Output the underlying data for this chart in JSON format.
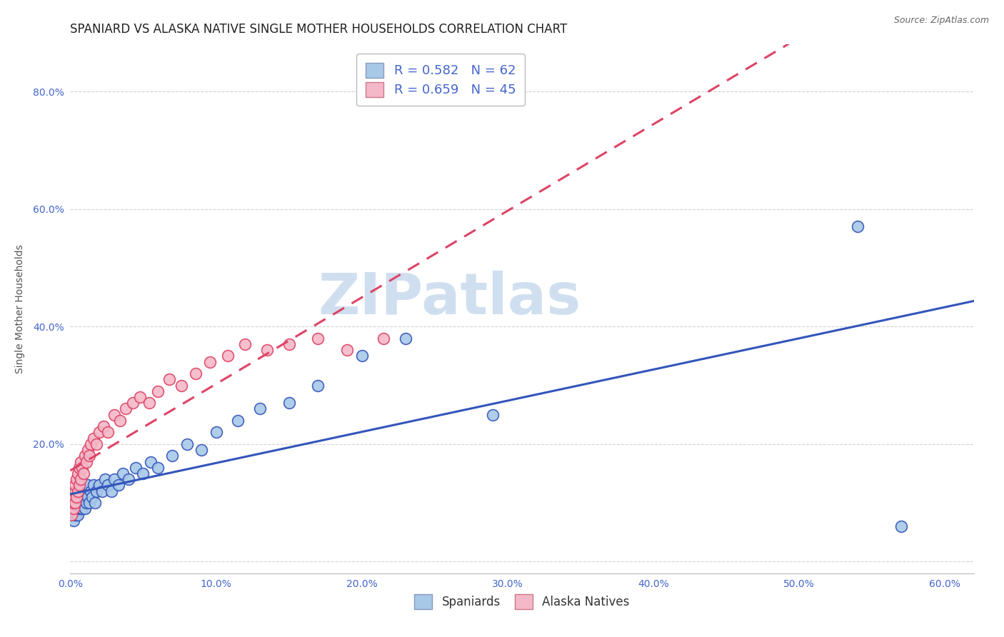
{
  "title": "SPANIARD VS ALASKA NATIVE SINGLE MOTHER HOUSEHOLDS CORRELATION CHART",
  "source": "Source: ZipAtlas.com",
  "ylabel": "Single Mother Households",
  "xlim": [
    0.0,
    0.62
  ],
  "ylim": [
    -0.02,
    0.88
  ],
  "xticks": [
    0.0,
    0.1,
    0.2,
    0.3,
    0.4,
    0.5,
    0.6
  ],
  "yticks": [
    0.0,
    0.2,
    0.4,
    0.6,
    0.8
  ],
  "color_blue": "#a8c8e8",
  "color_pink": "#f4b8c8",
  "line_color_blue": "#3355bb",
  "line_color_pink": "#dd4466",
  "tick_label_color": "#4466cc",
  "watermark_color": "#d0dff0",
  "spaniard_x": [
    0.001,
    0.001,
    0.002,
    0.002,
    0.002,
    0.003,
    0.003,
    0.003,
    0.003,
    0.004,
    0.004,
    0.004,
    0.005,
    0.005,
    0.005,
    0.005,
    0.006,
    0.006,
    0.006,
    0.007,
    0.007,
    0.008,
    0.008,
    0.009,
    0.009,
    0.01,
    0.01,
    0.011,
    0.012,
    0.012,
    0.013,
    0.014,
    0.015,
    0.016,
    0.017,
    0.018,
    0.02,
    0.022,
    0.024,
    0.026,
    0.028,
    0.03,
    0.033,
    0.036,
    0.04,
    0.045,
    0.05,
    0.055,
    0.06,
    0.07,
    0.08,
    0.09,
    0.1,
    0.115,
    0.13,
    0.15,
    0.17,
    0.2,
    0.23,
    0.29,
    0.54,
    0.57
  ],
  "spaniard_y": [
    0.08,
    0.1,
    0.07,
    0.09,
    0.11,
    0.08,
    0.09,
    0.1,
    0.12,
    0.08,
    0.09,
    0.11,
    0.08,
    0.09,
    0.1,
    0.12,
    0.09,
    0.1,
    0.11,
    0.09,
    0.1,
    0.09,
    0.11,
    0.1,
    0.12,
    0.09,
    0.11,
    0.1,
    0.11,
    0.13,
    0.1,
    0.12,
    0.11,
    0.13,
    0.1,
    0.12,
    0.13,
    0.12,
    0.14,
    0.13,
    0.12,
    0.14,
    0.13,
    0.15,
    0.14,
    0.16,
    0.15,
    0.17,
    0.16,
    0.18,
    0.2,
    0.19,
    0.22,
    0.24,
    0.26,
    0.27,
    0.3,
    0.35,
    0.38,
    0.25,
    0.57,
    0.06
  ],
  "alaska_x": [
    0.001,
    0.002,
    0.002,
    0.002,
    0.003,
    0.003,
    0.003,
    0.004,
    0.004,
    0.005,
    0.005,
    0.006,
    0.006,
    0.007,
    0.007,
    0.008,
    0.009,
    0.01,
    0.011,
    0.012,
    0.013,
    0.014,
    0.016,
    0.018,
    0.02,
    0.023,
    0.026,
    0.03,
    0.034,
    0.038,
    0.043,
    0.048,
    0.054,
    0.06,
    0.068,
    0.076,
    0.086,
    0.096,
    0.108,
    0.12,
    0.135,
    0.15,
    0.17,
    0.19,
    0.215
  ],
  "alaska_y": [
    0.08,
    0.09,
    0.1,
    0.11,
    0.1,
    0.12,
    0.13,
    0.11,
    0.14,
    0.12,
    0.15,
    0.13,
    0.16,
    0.14,
    0.17,
    0.16,
    0.15,
    0.18,
    0.17,
    0.19,
    0.18,
    0.2,
    0.21,
    0.2,
    0.22,
    0.23,
    0.22,
    0.25,
    0.24,
    0.26,
    0.27,
    0.28,
    0.27,
    0.29,
    0.31,
    0.3,
    0.32,
    0.34,
    0.35,
    0.37,
    0.36,
    0.37,
    0.38,
    0.36,
    0.38
  ],
  "background_color": "#ffffff",
  "grid_color": "#cccccc",
  "title_color": "#222222",
  "title_fontsize": 12,
  "axis_label_fontsize": 10,
  "tick_fontsize": 10,
  "legend_fontsize": 13
}
